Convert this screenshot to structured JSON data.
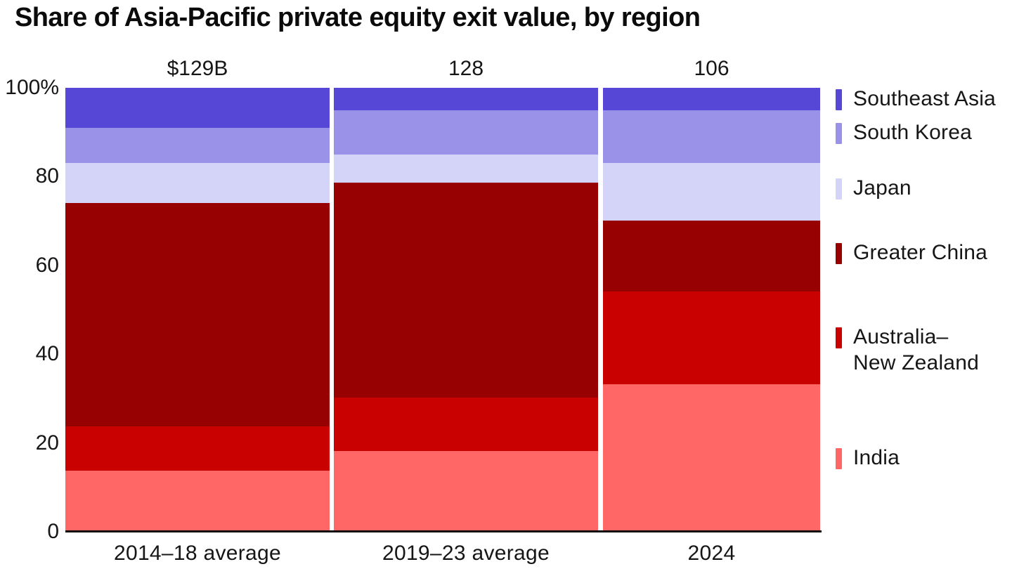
{
  "title": "Share of Asia-Pacific private equity exit value, by region",
  "chart_data": {
    "type": "bar",
    "variant": "100%-stacked-column",
    "stack_order": "top-to-bottom as listed in series",
    "title": "Share of Asia-Pacific private equity exit value, by region",
    "unit": "%",
    "ylim": [
      0,
      100
    ],
    "grid": false,
    "legend_position": "right",
    "yticks": [
      "100%",
      "80",
      "60",
      "40",
      "20",
      "0"
    ],
    "categories": [
      "2014–18 average",
      "2019–23 average",
      "2024"
    ],
    "bar_totals": [
      "$129B",
      "128",
      "106"
    ],
    "series": [
      {
        "key": "southeast-asia",
        "name": "Southeast Asia",
        "label": "Southeast Asia",
        "color": "#5647D7",
        "values": [
          9,
          5,
          5
        ]
      },
      {
        "key": "south-korea",
        "name": "South Korea",
        "label": "South Korea",
        "color": "#9A91E8",
        "values": [
          8,
          10,
          12
        ]
      },
      {
        "key": "japan",
        "name": "Japan",
        "label": "Japan",
        "color": "#D4D4F8",
        "values": [
          9,
          6.5,
          13
        ]
      },
      {
        "key": "greater-china",
        "name": "Greater China",
        "label": "Greater China",
        "color": "#970101",
        "values": [
          50.5,
          48.5,
          16
        ]
      },
      {
        "key": "australia-new-zealand",
        "name": "Australia–New Zealand",
        "label": "Australia–\nNew Zealand",
        "color": "#C90101",
        "values": [
          10,
          12,
          21
        ]
      },
      {
        "key": "india",
        "name": "India",
        "label": "India",
        "color": "#FF6666",
        "values": [
          13.5,
          18,
          33
        ]
      }
    ]
  }
}
